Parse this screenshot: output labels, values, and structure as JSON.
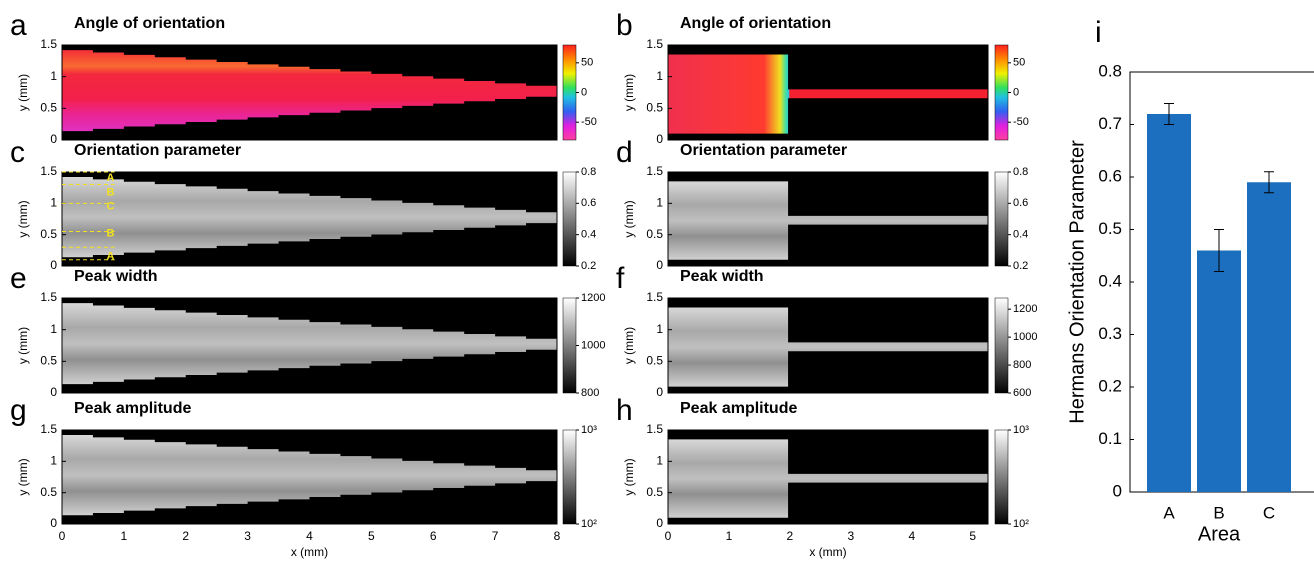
{
  "chart_data": [
    {
      "type": "image",
      "panel": "a",
      "title": "Angle of orientation",
      "ylabel": "y (mm)",
      "xlim": [
        0,
        8
      ],
      "ylim": [
        0,
        1.5
      ],
      "yticks": [
        0,
        0.5,
        1,
        1.5
      ],
      "colormap": "jet",
      "clim": [
        -80,
        80
      ],
      "cticks": [
        -50,
        0,
        50
      ]
    },
    {
      "type": "image",
      "panel": "c",
      "title": "Orientation parameter",
      "ylabel": "y (mm)",
      "xlim": [
        0,
        8
      ],
      "ylim": [
        0,
        1.5
      ],
      "yticks": [
        0,
        0.5,
        1,
        1.5
      ],
      "colormap": "gray",
      "clim": [
        0.2,
        0.8
      ],
      "cticks": [
        0.2,
        0.4,
        0.6,
        0.8
      ],
      "annotations": [
        "A",
        "B",
        "C",
        "B",
        "A"
      ]
    },
    {
      "type": "image",
      "panel": "e",
      "title": "Peak width",
      "ylabel": "y (mm)",
      "xlim": [
        0,
        8
      ],
      "ylim": [
        0,
        1.5
      ],
      "yticks": [
        0,
        0.5,
        1,
        1.5
      ],
      "colormap": "gray",
      "clim": [
        800,
        1200
      ],
      "cticks": [
        800,
        1000,
        1200
      ]
    },
    {
      "type": "image",
      "panel": "g",
      "title": "Peak amplitude",
      "ylabel": "y (mm)",
      "xlabel": "x (mm)",
      "xlim": [
        0,
        8
      ],
      "ylim": [
        0,
        1.5
      ],
      "yticks": [
        0,
        0.5,
        1,
        1.5
      ],
      "xticks": [
        0,
        1,
        2,
        3,
        4,
        5,
        6,
        7,
        8
      ],
      "colormap": "gray",
      "clim": [
        100,
        1000
      ],
      "clog": true,
      "cticks": [
        {
          "value": 100,
          "label": "10²"
        },
        {
          "value": 1000,
          "label": "10³"
        }
      ]
    },
    {
      "type": "image",
      "panel": "b",
      "title": "Angle of orientation",
      "ylabel": "y (mm)",
      "xlim": [
        0,
        5.25
      ],
      "ylim": [
        0,
        1.5
      ],
      "yticks": [
        0,
        0.5,
        1,
        1.5
      ],
      "colormap": "jet",
      "clim": [
        -80,
        80
      ],
      "cticks": [
        -50,
        0,
        50
      ]
    },
    {
      "type": "image",
      "panel": "d",
      "title": "Orientation parameter",
      "ylabel": "y (mm)",
      "xlim": [
        0,
        5.25
      ],
      "ylim": [
        0,
        1.5
      ],
      "yticks": [
        0,
        0.5,
        1,
        1.5
      ],
      "colormap": "gray",
      "clim": [
        0.2,
        0.8
      ],
      "cticks": [
        0.2,
        0.4,
        0.6,
        0.8
      ]
    },
    {
      "type": "image",
      "panel": "f",
      "title": "Peak width",
      "ylabel": "y (mm)",
      "xlim": [
        0,
        5.25
      ],
      "ylim": [
        0,
        1.5
      ],
      "yticks": [
        0,
        0.5,
        1,
        1.5
      ],
      "colormap": "gray",
      "clim": [
        600,
        1280
      ],
      "cticks": [
        600,
        800,
        1000,
        1200
      ]
    },
    {
      "type": "image",
      "panel": "h",
      "title": "Peak amplitude",
      "ylabel": "y (mm)",
      "xlabel": "x (mm)",
      "xlim": [
        0,
        5.25
      ],
      "ylim": [
        0,
        1.5
      ],
      "yticks": [
        0,
        0.5,
        1,
        1.5
      ],
      "xticks": [
        0,
        1,
        2,
        3,
        4,
        5
      ],
      "colormap": "gray",
      "clim": [
        100,
        1000
      ],
      "clog": true,
      "cticks": [
        {
          "value": 100,
          "label": "10²"
        },
        {
          "value": 1000,
          "label": "10³"
        }
      ]
    },
    {
      "type": "bar",
      "panel": "i",
      "ylabel": "Hermans Orientation Parameter",
      "xlabel": "Area",
      "categories": [
        "A",
        "B",
        "C"
      ],
      "values": [
        0.72,
        0.46,
        0.59
      ],
      "errors": [
        0.02,
        0.04,
        0.02
      ],
      "color": "#1c6fbe",
      "ylim": [
        0,
        0.8
      ],
      "yticks": [
        0,
        0.1,
        0.2,
        0.3,
        0.4,
        0.5,
        0.6,
        0.7,
        0.8
      ]
    }
  ]
}
